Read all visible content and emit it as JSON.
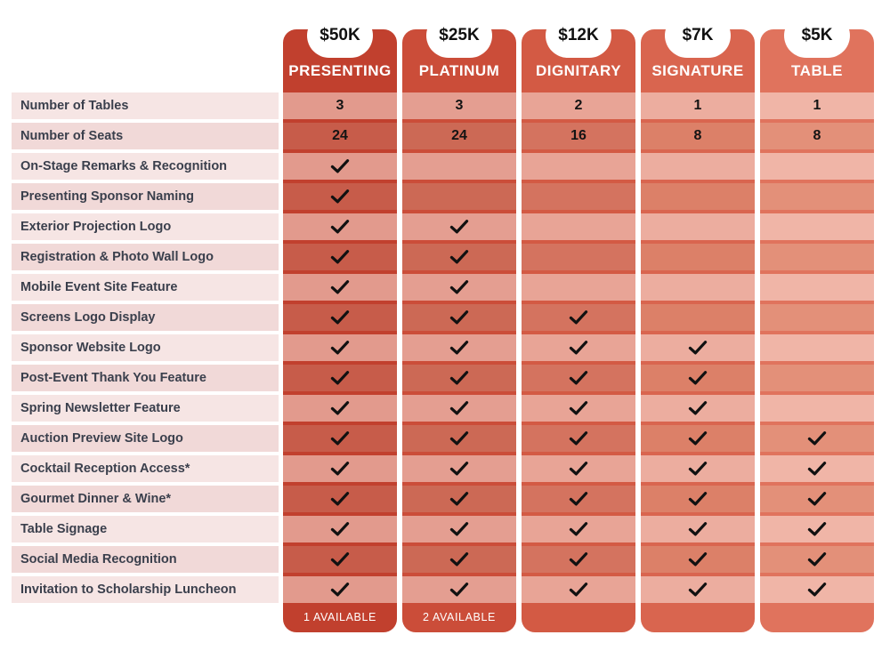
{
  "tiers": [
    {
      "price": "$50K",
      "name": "PRESENTING",
      "footer": "1 AVAILABLE",
      "colors": {
        "bg": "#c1402e",
        "band_a": "#e29a8d",
        "band_b": "#c75c4a"
      }
    },
    {
      "price": "$25K",
      "name": "PLATINUM",
      "footer": "2 AVAILABLE",
      "colors": {
        "bg": "#cb4d39",
        "band_a": "#e49e91",
        "band_b": "#cc6955"
      }
    },
    {
      "price": "$12K",
      "name": "DIGNITARY",
      "footer": "",
      "colors": {
        "bg": "#d35a44",
        "band_a": "#e8a496",
        "band_b": "#d4735f"
      }
    },
    {
      "price": "$7K",
      "name": "SIGNATURE",
      "footer": "",
      "colors": {
        "bg": "#d9654f",
        "band_a": "#ecad9f",
        "band_b": "#dc8068"
      }
    },
    {
      "price": "$5K",
      "name": "TABLE",
      "footer": "",
      "colors": {
        "bg": "#e0735d",
        "band_a": "#f0b5a7",
        "band_b": "#e39079"
      }
    }
  ],
  "features": [
    {
      "label": "Number of Tables",
      "values": [
        "3",
        "3",
        "2",
        "1",
        "1"
      ]
    },
    {
      "label": "Number of Seats",
      "values": [
        "24",
        "24",
        "16",
        "8",
        "8"
      ]
    },
    {
      "label": "On-Stage Remarks & Recognition",
      "values": [
        true,
        false,
        false,
        false,
        false
      ]
    },
    {
      "label": "Presenting Sponsor Naming",
      "values": [
        true,
        false,
        false,
        false,
        false
      ]
    },
    {
      "label": "Exterior Projection Logo",
      "values": [
        true,
        true,
        false,
        false,
        false
      ]
    },
    {
      "label": "Registration & Photo Wall Logo",
      "values": [
        true,
        true,
        false,
        false,
        false
      ]
    },
    {
      "label": "Mobile Event Site Feature",
      "values": [
        true,
        true,
        false,
        false,
        false
      ]
    },
    {
      "label": "Screens Logo Display",
      "values": [
        true,
        true,
        true,
        false,
        false
      ]
    },
    {
      "label": "Sponsor Website Logo",
      "values": [
        true,
        true,
        true,
        true,
        false
      ]
    },
    {
      "label": "Post-Event Thank You Feature",
      "values": [
        true,
        true,
        true,
        true,
        false
      ]
    },
    {
      "label": "Spring Newsletter Feature",
      "values": [
        true,
        true,
        true,
        true,
        false
      ]
    },
    {
      "label": "Auction Preview Site Logo",
      "values": [
        true,
        true,
        true,
        true,
        true
      ]
    },
    {
      "label": "Cocktail Reception Access*",
      "values": [
        true,
        true,
        true,
        true,
        true
      ]
    },
    {
      "label": "Gourmet Dinner & Wine*",
      "values": [
        true,
        true,
        true,
        true,
        true
      ]
    },
    {
      "label": "Table Signage",
      "values": [
        true,
        true,
        true,
        true,
        true
      ]
    },
    {
      "label": "Social Media Recognition",
      "values": [
        true,
        true,
        true,
        true,
        true
      ]
    },
    {
      "label": "Invitation to Scholarship Luncheon",
      "values": [
        true,
        true,
        true,
        true,
        true
      ]
    }
  ],
  "colors": {
    "label_band_a": "#f6e5e4",
    "label_band_b": "#f1d9d8",
    "check": "#111111"
  },
  "icons": {
    "included": "check-icon"
  }
}
